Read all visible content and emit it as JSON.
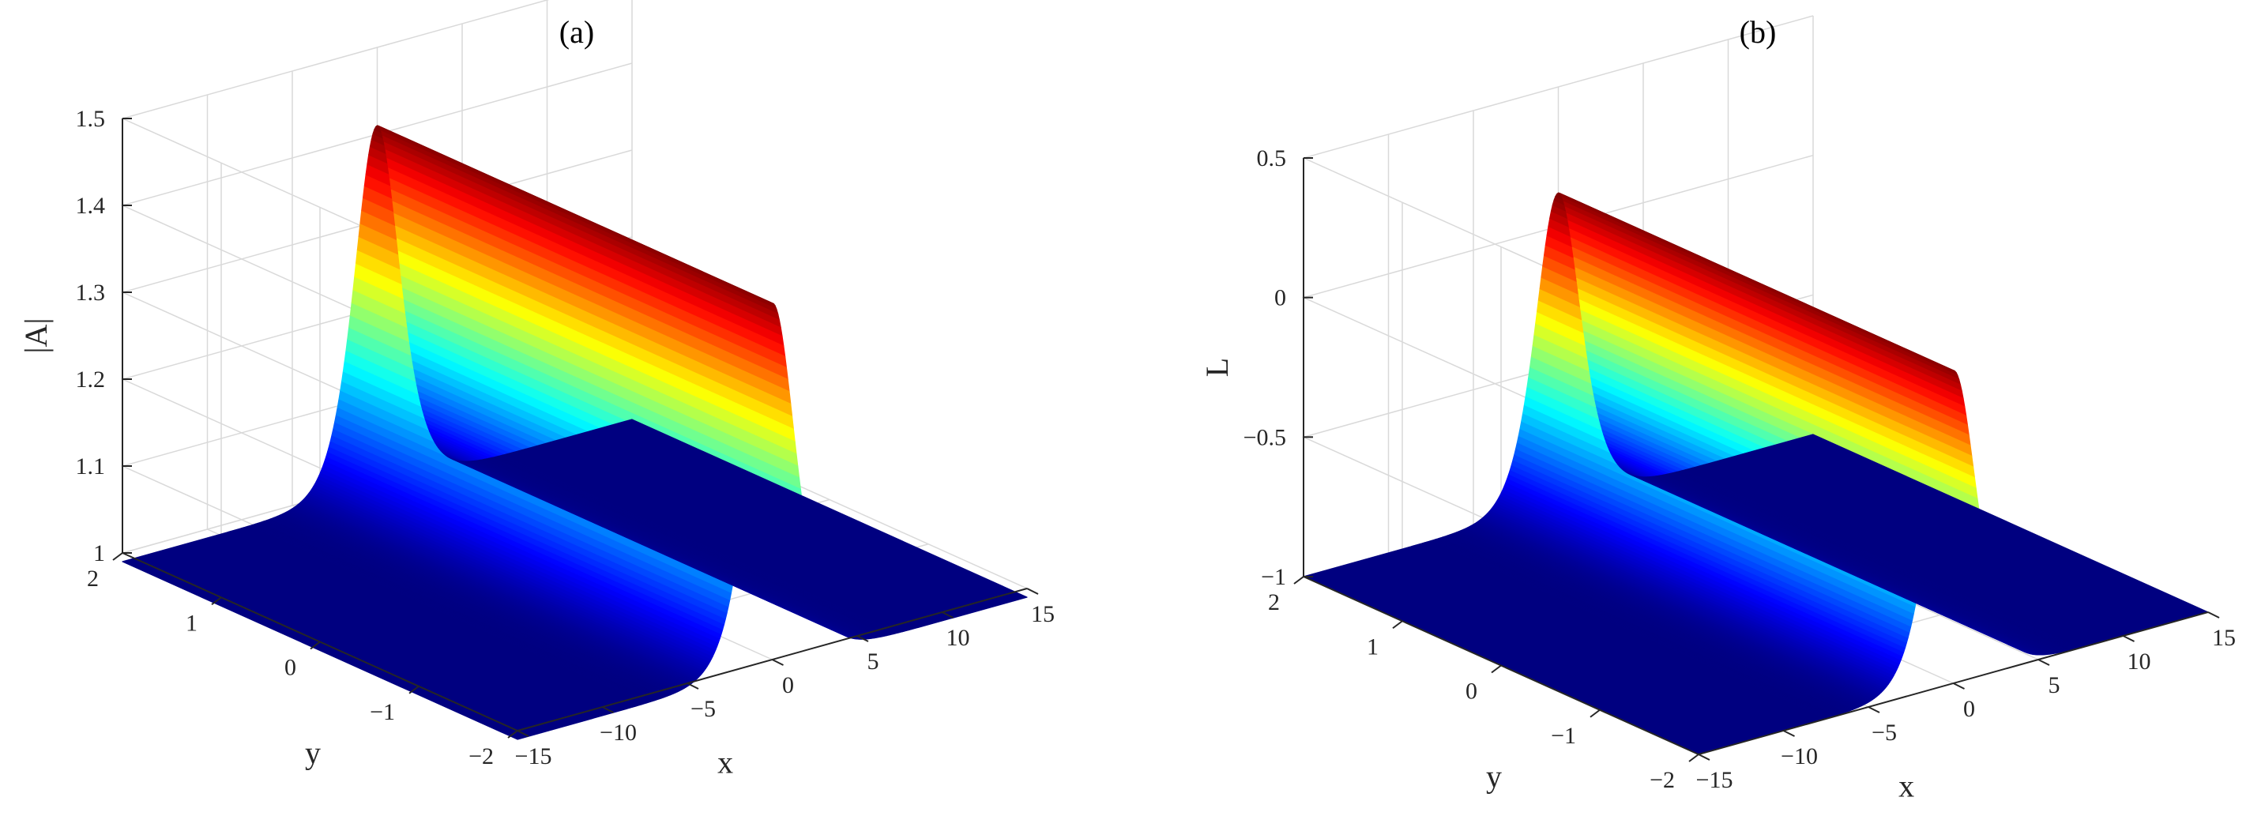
{
  "chart_data": [
    {
      "type": "surface",
      "panel": "(a)",
      "title": "(a)",
      "xlabel": "x",
      "ylabel": "y",
      "zlabel": "|A|",
      "xlim": [
        -15,
        15
      ],
      "ylim": [
        -2,
        2
      ],
      "zlim": [
        1,
        1.5
      ],
      "xticks": [
        -15,
        -10,
        -5,
        0,
        5,
        10,
        15
      ],
      "xtick_labels": [
        "−15",
        "−10",
        "−5",
        "0",
        "5",
        "10",
        "15"
      ],
      "yticks": [
        -2,
        -1,
        0,
        1,
        2
      ],
      "ytick_labels": [
        "−2",
        "−1",
        "0",
        "1",
        "2"
      ],
      "zticks": [
        1,
        1.1,
        1.2,
        1.3,
        1.4,
        1.5
      ],
      "ztick_labels": [
        "1",
        "1.1",
        "1.2",
        "1.3",
        "1.4",
        "1.5"
      ],
      "background_level": 0.99,
      "peak_level": 1.41,
      "peak_x": 0,
      "width": 1.8,
      "colormap": "jet",
      "grid": true,
      "view": "3d"
    },
    {
      "type": "surface",
      "panel": "(b)",
      "title": "(b)",
      "xlabel": "x",
      "ylabel": "y",
      "zlabel": "L",
      "xlim": [
        -15,
        15
      ],
      "ylim": [
        -2,
        2
      ],
      "zlim": [
        -1,
        0.5
      ],
      "xticks": [
        -15,
        -10,
        -5,
        0,
        5,
        10,
        15
      ],
      "xtick_labels": [
        "−15",
        "−10",
        "−5",
        "0",
        "5",
        "10",
        "15"
      ],
      "yticks": [
        -2,
        -1,
        0,
        1,
        2
      ],
      "ytick_labels": [
        "−2",
        "−1",
        "0",
        "1",
        "2"
      ],
      "zticks": [
        -1,
        -0.5,
        0,
        0.5
      ],
      "ztick_labels": [
        "−1",
        "−0.5",
        "0",
        "0.5"
      ],
      "background_level": -1.0,
      "peak_level": 0.12,
      "peak_x": 0,
      "width": 1.8,
      "colormap": "jet",
      "grid": true,
      "view": "3d"
    }
  ]
}
